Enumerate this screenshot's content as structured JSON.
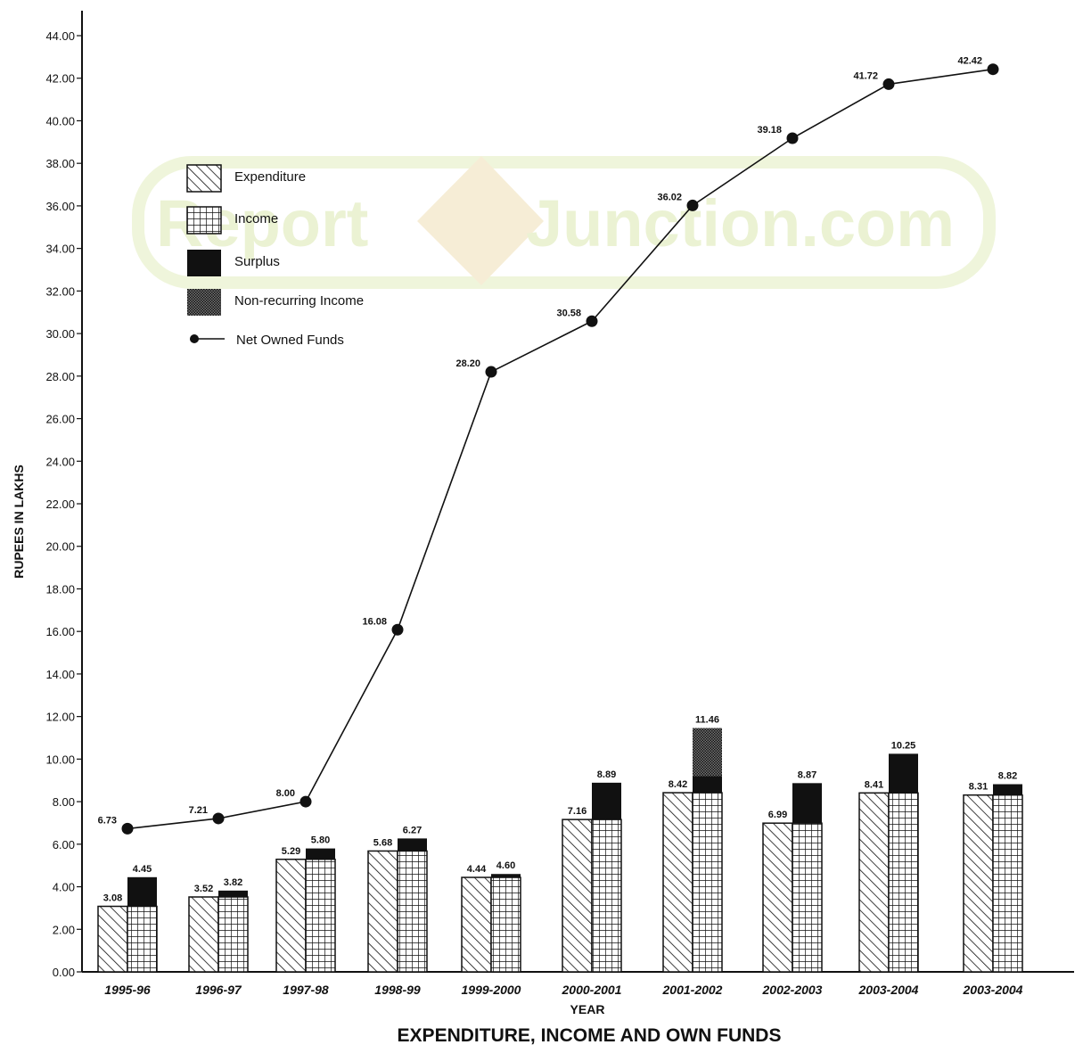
{
  "chart_data": {
    "type": "bar",
    "title": "EXPENDITURE, INCOME AND OWN FUNDS",
    "xlabel": "YEAR",
    "ylabel": "RUPEES IN LAKHS",
    "ylim": [
      0,
      44
    ],
    "yticks": [
      "0.00",
      "2.00",
      "4.00",
      "6.00",
      "8.00",
      "10.00",
      "12.00",
      "14.00",
      "16.00",
      "18.00",
      "20.00",
      "22.00",
      "24.00",
      "26.00",
      "28.00",
      "30.00",
      "32.00",
      "34.00",
      "36.00",
      "38.00",
      "40.00",
      "42.00",
      "44.00"
    ],
    "categories": [
      "1995-96",
      "1996-97",
      "1997-98",
      "1998-99",
      "1999-2000",
      "2000-2001",
      "2001-2002",
      "2002-2003",
      "2003-2004",
      "2003-2004"
    ],
    "series": [
      {
        "name": "Expenditure",
        "kind": "bar",
        "values": [
          3.08,
          3.52,
          5.29,
          5.68,
          4.44,
          7.16,
          8.42,
          6.99,
          8.41,
          8.31
        ],
        "labels": [
          "3.08",
          "3.52",
          "5.29",
          "5.68",
          "4.44",
          "7.16",
          "8.42",
          "6.99",
          "8.41",
          "8.31"
        ]
      },
      {
        "name": "Income",
        "kind": "stacked-bar",
        "values": [
          4.45,
          3.82,
          5.8,
          6.27,
          4.6,
          8.89,
          9.2,
          8.87,
          10.25,
          8.82
        ],
        "labels": [
          "4.45",
          "3.82",
          "5.80",
          "6.27",
          "4.60",
          "8.89",
          "",
          "8.87",
          "10.25",
          "8.82"
        ]
      },
      {
        "name": "Surplus",
        "kind": "stacked-bar",
        "values": [
          1.37,
          0.3,
          0.51,
          0.59,
          0.16,
          1.73,
          0.78,
          1.88,
          1.84,
          0.51
        ]
      },
      {
        "name": "Non-recurring Income",
        "kind": "stacked-bar",
        "values": [
          0,
          0,
          0,
          0,
          0,
          0,
          2.26,
          0,
          0,
          0
        ],
        "top_labels": [
          "",
          "",
          "",
          "",
          "",
          "",
          "11.46",
          "",
          "",
          ""
        ]
      },
      {
        "name": "Net Owned Funds",
        "kind": "line",
        "values": [
          6.73,
          7.21,
          8.0,
          16.08,
          28.2,
          30.58,
          36.02,
          39.18,
          41.72,
          42.42
        ],
        "labels": [
          "6.73",
          "7.21",
          "8.00",
          "16.08",
          "28.20",
          "30.58",
          "36.02",
          "39.18",
          "41.72",
          "42.42"
        ]
      }
    ],
    "legend_position": "top-left",
    "grid": false
  },
  "watermark": {
    "text_left": "Report",
    "text_right": "Junction.com"
  },
  "colors": {
    "ink": "#111111",
    "surplus": "#111111",
    "watermark": "#e9f1cf"
  }
}
